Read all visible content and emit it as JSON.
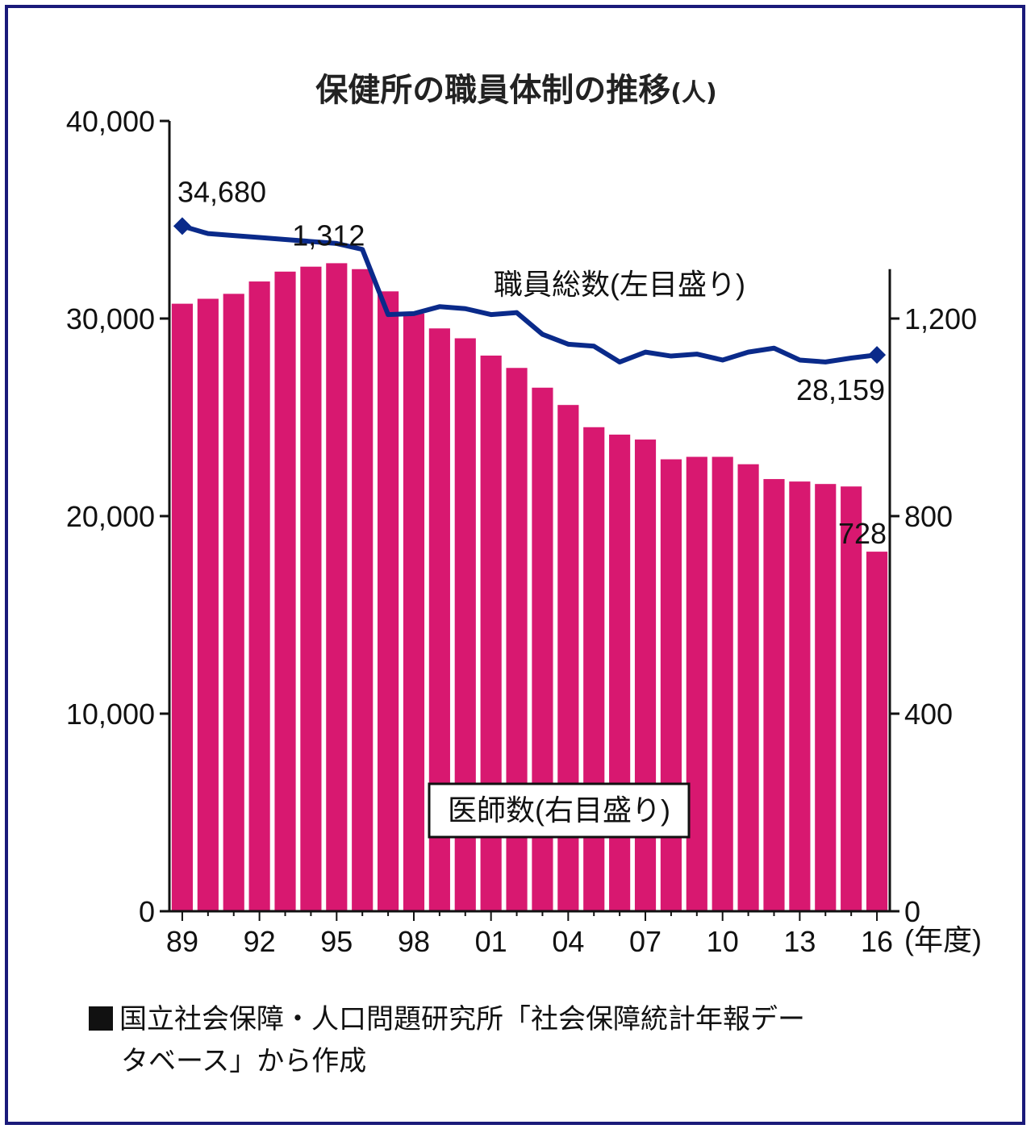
{
  "chart_data": {
    "type": "bar+line",
    "title": "保健所の職員体制の推移",
    "title_unit": "(人)",
    "x_unit_label": "(年度)",
    "x_tick_labels": [
      "89",
      "92",
      "95",
      "98",
      "01",
      "04",
      "07",
      "10",
      "13",
      "16"
    ],
    "years": [
      1989,
      1990,
      1991,
      1992,
      1993,
      1994,
      1995,
      1996,
      1997,
      1998,
      1999,
      2000,
      2001,
      2002,
      2003,
      2004,
      2005,
      2006,
      2007,
      2008,
      2009,
      2010,
      2011,
      2012,
      2013,
      2014,
      2015,
      2016
    ],
    "y_left": {
      "ticks": [
        "0",
        "10,000",
        "20,000",
        "30,000",
        "40,000"
      ],
      "range": [
        0,
        40000
      ]
    },
    "y_right": {
      "ticks": [
        "0",
        "400",
        "800",
        "1,200"
      ],
      "range": [
        0,
        1600
      ]
    },
    "series": [
      {
        "name": "職員総数(左目盛り)",
        "type": "line",
        "axis": "left",
        "color": "#0a2a8a",
        "values": [
          34680,
          34300,
          34200,
          34100,
          34000,
          33900,
          33800,
          33500,
          30200,
          30250,
          30600,
          30500,
          30200,
          30300,
          29200,
          28700,
          28600,
          27800,
          28300,
          28100,
          28200,
          27900,
          28300,
          28500,
          27900,
          27800,
          28000,
          28159
        ]
      },
      {
        "name": "医師数(右目盛り)",
        "type": "bar",
        "axis": "right",
        "color": "#d81870",
        "values": [
          1230,
          1240,
          1250,
          1275,
          1295,
          1305,
          1312,
          1300,
          1255,
          1210,
          1180,
          1160,
          1125,
          1100,
          1060,
          1025,
          980,
          965,
          955,
          915,
          920,
          920,
          905,
          875,
          870,
          865,
          860,
          728
        ]
      }
    ],
    "annotations": {
      "staff_first": "34,680",
      "staff_last": "28,159",
      "doctors_peak": "1,312",
      "doctors_last": "728"
    }
  },
  "source_note": {
    "line1": "国立社会保障・人口問題研究所「社会保障統計年報デー",
    "line2": "タベース」から作成"
  },
  "colors": {
    "frame": "#1a1a7a",
    "line": "#0a2a8a",
    "bar": "#d81870"
  }
}
